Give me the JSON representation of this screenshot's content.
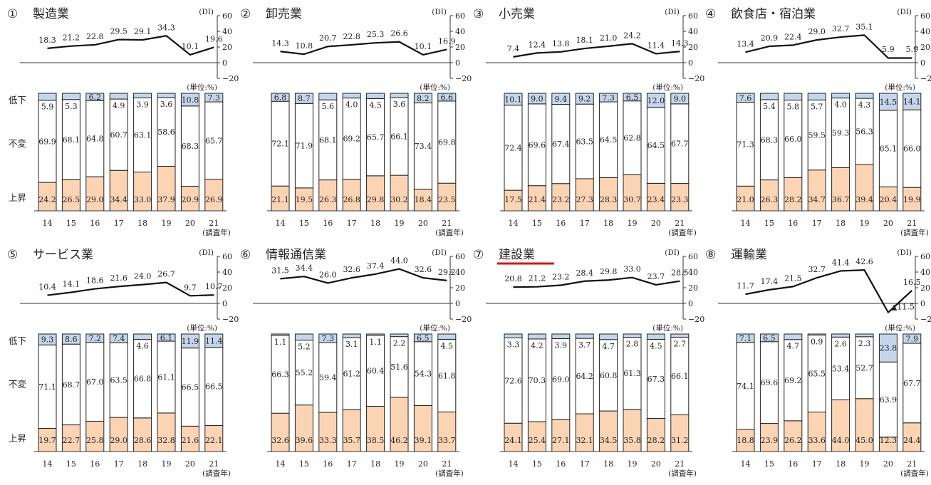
{
  "years": [
    "14",
    "15",
    "16",
    "17",
    "18",
    "19",
    "20",
    "21"
  ],
  "year_suffix": "(調査年)",
  "unit_label": "(単位:%)",
  "di_label": "(DI)",
  "di_axis_ticks": [
    "60",
    "40",
    "20",
    "0",
    "−20"
  ],
  "row_labels": {
    "down": "低下",
    "same": "不変",
    "up": "上昇"
  },
  "colors": {
    "up": "#fbd4b4",
    "same": "#ffffff",
    "down": "#c5d5ea",
    "line": "#111111",
    "highlight": "#e01010"
  },
  "chart_data": [
    {
      "id": "c1",
      "num": "①",
      "title": "製造業",
      "type": "line+stacked-bar",
      "di": [
        18.3,
        21.2,
        22.8,
        29.5,
        29.1,
        34.3,
        10.1,
        19.6
      ],
      "di_labels": [
        "18.3",
        "21.2",
        "22.8",
        "29.5",
        "29.1",
        "34.3",
        "10.1",
        "19.6"
      ],
      "up": [
        24.2,
        26.5,
        29.0,
        34.4,
        33.0,
        37.9,
        20.9,
        26.9
      ],
      "same": [
        69.9,
        68.1,
        64.8,
        60.7,
        63.1,
        58.6,
        68.3,
        65.7
      ],
      "down": [
        5.9,
        5.3,
        6.2,
        4.9,
        3.9,
        3.6,
        10.8,
        7.3
      ],
      "up_labels": [
        "24.2",
        "26.5",
        "29.0",
        "34.4",
        "33.0",
        "37.9",
        "20.9",
        "26.9"
      ],
      "same_labels": [
        "69.9",
        "68.1",
        "64.8",
        "60.7",
        "63.1",
        "58.6",
        "68.3",
        "65.7"
      ],
      "down_labels": [
        "5.9",
        "5.3",
        "6.2",
        "4.9",
        "3.9",
        "3.6",
        "10.8",
        "7.3"
      ],
      "ylim_di": [
        -20,
        60
      ]
    },
    {
      "id": "c2",
      "num": "②",
      "title": "卸売業",
      "type": "line+stacked-bar",
      "di": [
        14.3,
        10.8,
        20.7,
        22.8,
        25.3,
        26.6,
        10.1,
        16.9
      ],
      "di_labels": [
        "14.3",
        "10.8",
        "20.7",
        "22.8",
        "25.3",
        "26.6",
        "10.1",
        "16.9"
      ],
      "up": [
        21.1,
        19.5,
        26.3,
        26.8,
        29.8,
        30.2,
        18.4,
        23.5
      ],
      "same": [
        72.1,
        71.9,
        68.1,
        69.2,
        65.7,
        66.1,
        73.4,
        69.8
      ],
      "down": [
        6.8,
        8.7,
        5.6,
        4.0,
        4.5,
        3.6,
        8.2,
        6.6
      ],
      "up_labels": [
        "21.1",
        "19.5",
        "26.3",
        "26.8",
        "29.8",
        "30.2",
        "18.4",
        "23.5"
      ],
      "same_labels": [
        "72.1",
        "71.9",
        "68.1",
        "69.2",
        "65.7",
        "66.1",
        "73.4",
        "69.8"
      ],
      "down_labels": [
        "6.8",
        "8.7",
        "5.6",
        "4.0",
        "4.5",
        "3.6",
        "8.2",
        "6.6"
      ],
      "ylim_di": [
        -20,
        60
      ]
    },
    {
      "id": "c3",
      "num": "③",
      "title": "小売業",
      "type": "line+stacked-bar",
      "di": [
        7.4,
        12.4,
        13.8,
        18.1,
        21.0,
        24.2,
        11.4,
        14.3
      ],
      "di_labels": [
        "7.4",
        "12.4",
        "13.8",
        "18.1",
        "21.0",
        "24.2",
        "11.4",
        "14.3"
      ],
      "up": [
        17.5,
        21.4,
        23.2,
        27.3,
        28.3,
        30.7,
        23.4,
        23.3
      ],
      "same": [
        72.4,
        69.6,
        67.4,
        63.5,
        64.5,
        62.8,
        64.5,
        67.7
      ],
      "down": [
        10.1,
        9.0,
        9.4,
        9.2,
        7.3,
        6.5,
        12.0,
        9.0
      ],
      "up_labels": [
        "17.5",
        "21.4",
        "23.2",
        "27.3",
        "28.3",
        "30.7",
        "23.4",
        "23.3"
      ],
      "same_labels": [
        "72.4",
        "69.6",
        "67.4",
        "63.5",
        "64.5",
        "62.8",
        "64.5",
        "67.7"
      ],
      "down_labels": [
        "10.1",
        "9.0",
        "9.4",
        "9.2",
        "7.3",
        "6.5",
        "12.0",
        "9.0"
      ],
      "ylim_di": [
        -20,
        60
      ]
    },
    {
      "id": "c4",
      "num": "④",
      "title": "飲食店・宿泊業",
      "type": "line+stacked-bar",
      "di": [
        13.4,
        20.9,
        22.4,
        29.0,
        32.7,
        35.1,
        5.9,
        5.9
      ],
      "di_labels": [
        "13.4",
        "20.9",
        "22.4",
        "29.0",
        "32.7",
        "35.1",
        "5.9",
        "5.9"
      ],
      "up": [
        21.0,
        26.3,
        28.2,
        34.7,
        36.7,
        39.4,
        20.4,
        19.9
      ],
      "same": [
        71.3,
        68.3,
        66.0,
        59.5,
        59.3,
        56.3,
        65.1,
        66.0
      ],
      "down": [
        7.6,
        5.4,
        5.8,
        5.7,
        4.0,
        4.3,
        14.5,
        14.1
      ],
      "up_labels": [
        "21.0",
        "26.3",
        "28.2",
        "34.7",
        "36.7",
        "39.4",
        "20.4",
        "19.9"
      ],
      "same_labels": [
        "71.3",
        "68.3",
        "66.0",
        "59.5",
        "59.3",
        "56.3",
        "65.1",
        "66.0"
      ],
      "down_labels": [
        "7.6",
        "5.4",
        "5.8",
        "5.7",
        "4.0",
        "4.3",
        "14.5",
        "14.1"
      ],
      "ylim_di": [
        -20,
        60
      ]
    },
    {
      "id": "c5",
      "num": "⑤",
      "title": "サービス業",
      "type": "line+stacked-bar",
      "di": [
        10.4,
        14.1,
        18.6,
        21.6,
        24.0,
        26.7,
        9.7,
        10.7
      ],
      "di_labels": [
        "10.4",
        "14.1",
        "18.6",
        "21.6",
        "24.0",
        "26.7",
        "9.7",
        "10.7"
      ],
      "up": [
        19.7,
        22.7,
        25.8,
        29.0,
        28.6,
        32.8,
        21.6,
        22.1
      ],
      "same": [
        71.1,
        68.7,
        67.0,
        63.5,
        66.8,
        61.1,
        66.5,
        66.5
      ],
      "down": [
        9.3,
        8.6,
        7.2,
        7.4,
        4.6,
        6.1,
        11.9,
        11.4
      ],
      "up_labels": [
        "19.7",
        "22.7",
        "25.8",
        "29.0",
        "28.6",
        "32.8",
        "21.6",
        "22.1"
      ],
      "same_labels": [
        "71.1",
        "68.7",
        "67.0",
        "63.5",
        "66.8",
        "61.1",
        "66.5",
        "66.5"
      ],
      "down_labels": [
        "9.3",
        "8.6",
        "7.2",
        "7.4",
        "4.6",
        "6.1",
        "11.9",
        "11.4"
      ],
      "ylim_di": [
        -20,
        60
      ]
    },
    {
      "id": "c6",
      "num": "⑥",
      "title": "情報通信業",
      "type": "line+stacked-bar",
      "di": [
        31.5,
        34.4,
        26.0,
        32.6,
        37.4,
        44.0,
        32.6,
        29.2
      ],
      "di_labels": [
        "31.5",
        "34.4",
        "26.0",
        "32.6",
        "37.4",
        "44.0",
        "32.6",
        "29.2"
      ],
      "up": [
        32.6,
        39.6,
        33.3,
        35.7,
        38.5,
        46.2,
        39.1,
        33.7
      ],
      "same": [
        66.3,
        55.2,
        59.4,
        61.2,
        60.4,
        51.6,
        54.3,
        61.8
      ],
      "down": [
        1.1,
        5.2,
        7.3,
        3.1,
        1.1,
        2.2,
        6.5,
        4.5
      ],
      "up_labels": [
        "32.6",
        "39.6",
        "33.3",
        "35.7",
        "38.5",
        "46.2",
        "39.1",
        "33.7"
      ],
      "same_labels": [
        "66.3",
        "55.2",
        "59.4",
        "61.2",
        "60.4",
        "51.6",
        "54.3",
        "61.8"
      ],
      "down_labels": [
        "1.1",
        "5.2",
        "7.3",
        "3.1",
        "1.1",
        "2.2",
        "6.5",
        "4.5"
      ],
      "ylim_di": [
        -20,
        60
      ]
    },
    {
      "id": "c7",
      "num": "⑦",
      "title": "建設業",
      "type": "line+stacked-bar",
      "highlight": true,
      "di": [
        20.8,
        21.2,
        23.2,
        28.4,
        29.8,
        33.0,
        23.7,
        28.5
      ],
      "di_labels": [
        "20.8",
        "21.2",
        "23.2",
        "28.4",
        "29.8",
        "33.0",
        "23.7",
        "28.5"
      ],
      "up": [
        24.1,
        25.4,
        27.1,
        32.1,
        34.5,
        35.8,
        28.2,
        31.2
      ],
      "same": [
        72.6,
        70.3,
        69.0,
        64.2,
        60.8,
        61.3,
        67.3,
        66.1
      ],
      "down": [
        3.3,
        4.2,
        3.9,
        3.7,
        4.7,
        2.8,
        4.5,
        2.7
      ],
      "up_labels": [
        "24.1",
        "25.4",
        "27.1",
        "32.1",
        "34.5",
        "35.8",
        "28.2",
        "31.2"
      ],
      "same_labels": [
        "72.6",
        "70.3",
        "69.0",
        "64.2",
        "60.8",
        "61.3",
        "67.3",
        "66.1"
      ],
      "down_labels": [
        "3.3",
        "4.2",
        "3.9",
        "3.7",
        "4.7",
        "2.8",
        "4.5",
        "2.7"
      ],
      "ylim_di": [
        -20,
        60
      ]
    },
    {
      "id": "c8",
      "num": "⑧",
      "title": "運輸業",
      "type": "line+stacked-bar",
      "di": [
        11.7,
        17.4,
        21.5,
        32.7,
        41.4,
        42.6,
        -11.5,
        16.5
      ],
      "di_labels": [
        "11.7",
        "17.4",
        "21.5",
        "32.7",
        "41.4",
        "42.6",
        "▲11.5",
        "16.5"
      ],
      "up": [
        18.8,
        23.9,
        26.2,
        33.6,
        44.0,
        45.0,
        12.3,
        24.4
      ],
      "same": [
        74.1,
        69.6,
        69.2,
        65.5,
        53.4,
        52.7,
        63.9,
        67.7
      ],
      "down": [
        7.1,
        6.5,
        4.7,
        0.9,
        2.6,
        2.3,
        23.8,
        7.9
      ],
      "up_labels": [
        "18.8",
        "23.9",
        "26.2",
        "33.6",
        "44.0",
        "45.0",
        "12.3",
        "24.4"
      ],
      "same_labels": [
        "74.1",
        "69.6",
        "69.2",
        "65.5",
        "53.4",
        "52.7",
        "63.9",
        "67.7"
      ],
      "down_labels": [
        "7.1",
        "6.5",
        "4.7",
        "0.9",
        "2.6",
        "2.3",
        "23.8",
        "7.9"
      ],
      "ylim_di": [
        -20,
        60
      ]
    }
  ]
}
